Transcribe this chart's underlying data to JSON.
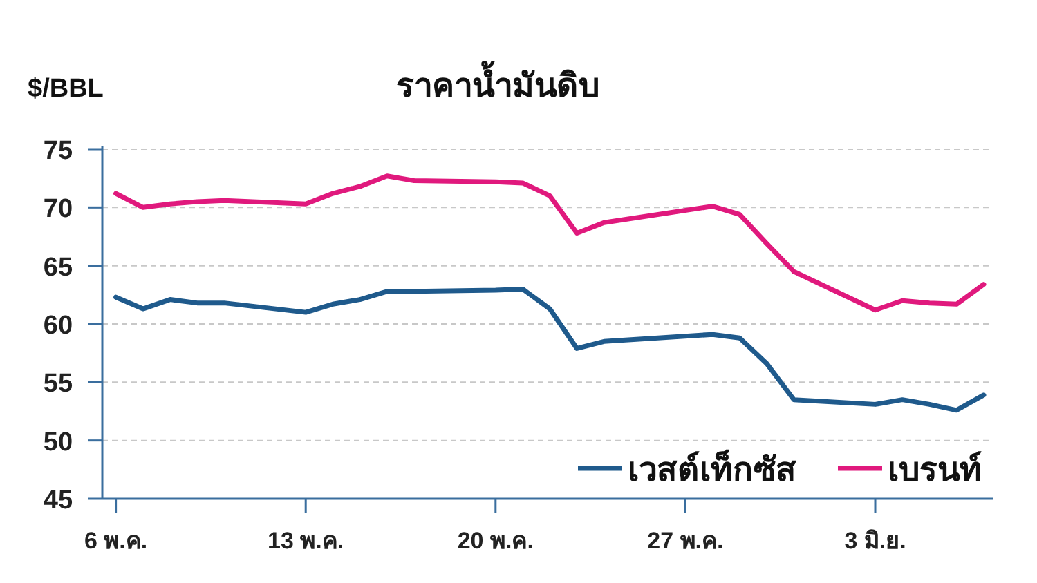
{
  "chart_data": {
    "type": "line",
    "title": "ราคาน้ำมันดิบ",
    "ylabel": "$/BBL",
    "ylim": [
      45,
      75
    ],
    "yticks": [
      45,
      50,
      55,
      60,
      65,
      70,
      75
    ],
    "xlim": [
      "--05-05T12:00",
      "--06-07T08:00"
    ],
    "xticks": [
      {
        "value": "--05-06",
        "label": "6 พ.ค."
      },
      {
        "value": "--05-13",
        "label": "13 พ.ค."
      },
      {
        "value": "--05-20",
        "label": "20 พ.ค."
      },
      {
        "value": "--05-27",
        "label": "27 พ.ค."
      },
      {
        "value": "--06-03",
        "label": "3 มิ.ย."
      }
    ],
    "grid": "y",
    "legend": "bottom right",
    "line_style": "solid",
    "marker": "none",
    "series": [
      {
        "name": "เวสต์เท็กซัส",
        "color": "#1f5a8c",
        "x": [
          "--05-06",
          "--05-07",
          "--05-08",
          "--05-09",
          "--05-10",
          "--05-13",
          "--05-14",
          "--05-15",
          "--05-16",
          "--05-17",
          "--05-20",
          "--05-21",
          "--05-22",
          "--05-23",
          "--05-24",
          "--05-28",
          "--05-29",
          "--05-30",
          "--05-31",
          "--06-03",
          "--06-04",
          "--06-05",
          "--06-06",
          "--06-07"
        ],
        "values": [
          62.3,
          61.3,
          62.1,
          61.8,
          61.8,
          61.0,
          61.7,
          62.1,
          62.8,
          62.8,
          62.9,
          63.0,
          61.3,
          57.9,
          58.5,
          59.1,
          58.8,
          56.6,
          53.5,
          53.1,
          53.5,
          53.1,
          52.6,
          53.9
        ]
      },
      {
        "name": "เบรนท์",
        "color": "#e0197d",
        "x": [
          "--05-06",
          "--05-07",
          "--05-08",
          "--05-09",
          "--05-10",
          "--05-13",
          "--05-14",
          "--05-15",
          "--05-16",
          "--05-17",
          "--05-20",
          "--05-21",
          "--05-22",
          "--05-23",
          "--05-24",
          "--05-28",
          "--05-29",
          "--05-30",
          "--05-31",
          "--06-03",
          "--06-04",
          "--06-05",
          "--06-06",
          "--06-07"
        ],
        "values": [
          71.2,
          70.0,
          70.3,
          70.5,
          70.6,
          70.3,
          71.2,
          71.8,
          72.7,
          72.3,
          72.2,
          72.1,
          71.0,
          67.8,
          68.7,
          70.1,
          69.4,
          66.9,
          64.5,
          61.2,
          62.0,
          61.8,
          61.7,
          63.4
        ]
      }
    ]
  }
}
